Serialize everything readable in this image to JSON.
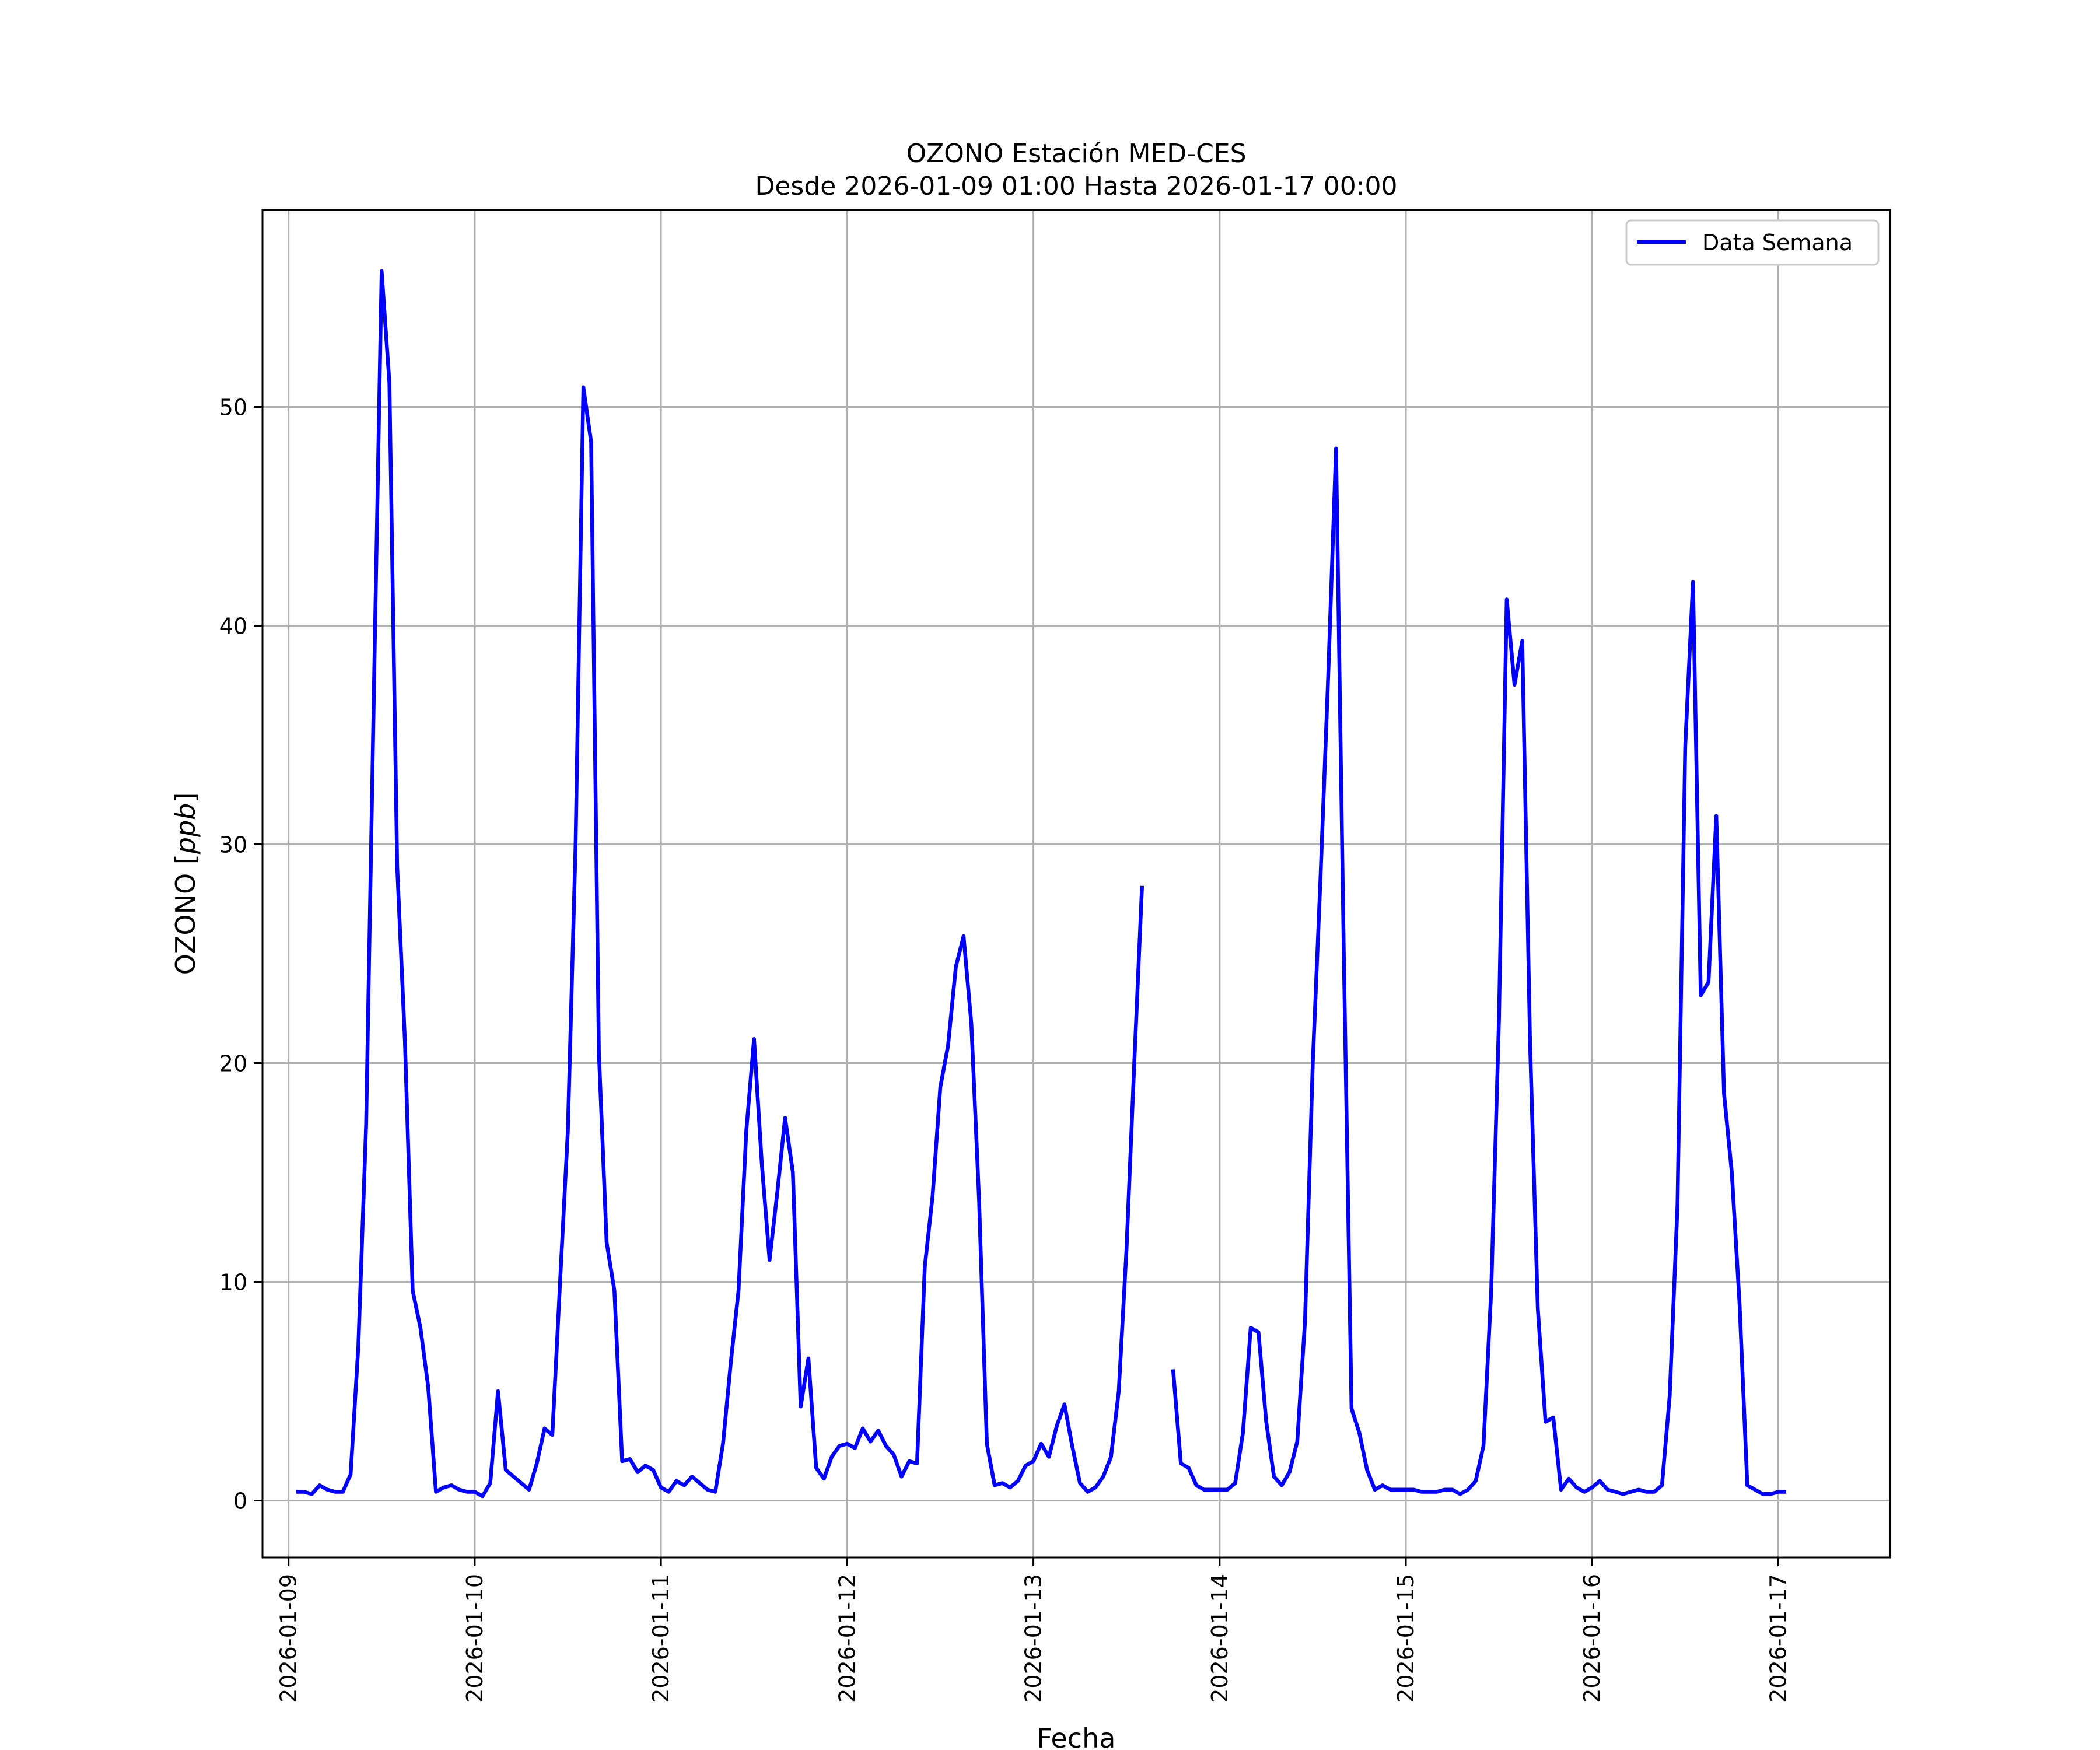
{
  "chart_data": {
    "type": "line",
    "title": "OZONO Estación MED-CES",
    "subtitle": "Desde 2026-01-09 01:00 Hasta 2026-01-17 00:00",
    "xlabel": "Fecha",
    "ylabel_text": "OZONO [",
    "ylabel_unit": "ppb",
    "ylabel_close": "]",
    "x_ticks": [
      "2026-01-09",
      "2026-01-10",
      "2026-01-11",
      "2026-01-12",
      "2026-01-13",
      "2026-01-14",
      "2026-01-15",
      "2026-01-16",
      "2026-01-17"
    ],
    "y_ticks": [
      0,
      10,
      20,
      30,
      40,
      50
    ],
    "xlim_days": [
      -0.14,
      8.6
    ],
    "ylim": [
      -2.6,
      59.0
    ],
    "grid": true,
    "legend_position": "top-right",
    "series": [
      {
        "name": "Data Semana",
        "color": "#0000ff",
        "start": "2026-01-09 01:00",
        "step_hours": 1,
        "values": [
          0.4,
          0.4,
          0.3,
          0.7,
          0.5,
          0.4,
          0.4,
          1.2,
          7.1,
          17.2,
          37.0,
          56.2,
          51.1,
          29.0,
          21.0,
          9.6,
          7.9,
          5.2,
          0.4,
          0.6,
          0.7,
          0.5,
          0.4,
          0.4,
          0.2,
          0.8,
          5.0,
          1.4,
          1.1,
          0.8,
          0.5,
          1.7,
          3.3,
          3.0,
          10.0,
          16.9,
          30.0,
          50.9,
          48.4,
          20.5,
          11.8,
          9.6,
          1.8,
          1.9,
          1.3,
          1.6,
          1.4,
          0.6,
          0.4,
          0.9,
          0.7,
          1.1,
          0.8,
          0.5,
          0.4,
          2.6,
          6.3,
          9.6,
          16.9,
          21.1,
          15.4,
          11.0,
          14.1,
          17.5,
          15.0,
          4.3,
          6.5,
          1.5,
          1.0,
          2.0,
          2.5,
          2.6,
          2.4,
          3.3,
          2.7,
          3.2,
          2.5,
          2.1,
          1.1,
          1.8,
          1.7,
          10.7,
          13.9,
          18.9,
          20.8,
          24.4,
          25.8,
          21.8,
          13.7,
          2.6,
          0.7,
          0.8,
          0.6,
          0.9,
          1.6,
          1.8,
          2.6,
          2.0,
          3.4,
          4.4,
          2.5,
          0.8,
          0.4,
          0.6,
          1.1,
          2.0,
          5.0,
          11.5,
          20.0,
          28.1,
          null,
          null,
          null,
          6.0,
          1.7,
          1.5,
          0.7,
          0.5,
          0.5,
          0.5,
          0.5,
          0.8,
          3.1,
          7.9,
          7.7,
          3.6,
          1.1,
          0.7,
          1.3,
          2.7,
          8.2,
          20.0,
          28.5,
          37.8,
          48.1,
          25.0,
          4.2,
          3.1,
          1.4,
          0.5,
          0.7,
          0.5,
          0.5,
          0.5,
          0.5,
          0.4,
          0.4,
          0.4,
          0.5,
          0.5,
          0.3,
          0.5,
          0.9,
          2.5,
          9.6,
          22.0,
          41.2,
          37.3,
          39.3,
          21.0,
          8.8,
          3.6,
          3.8,
          0.5,
          1.0,
          0.6,
          0.4,
          0.6,
          0.9,
          0.5,
          0.4,
          0.3,
          0.4,
          0.5,
          0.4,
          0.4,
          0.7,
          4.8,
          13.5,
          34.5,
          42.0,
          23.1,
          23.7,
          31.3,
          18.6,
          15.0,
          9.0,
          0.7,
          0.5,
          0.3,
          0.3,
          0.4,
          0.4
        ]
      }
    ]
  }
}
